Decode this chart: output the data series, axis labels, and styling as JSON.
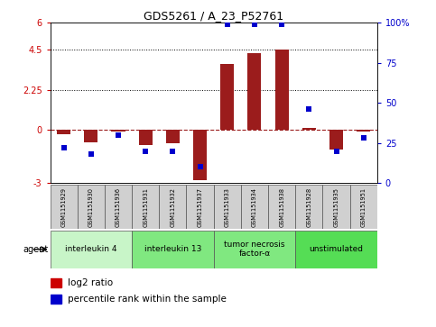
{
  "title": "GDS5261 / A_23_P52761",
  "samples": [
    "GSM1151929",
    "GSM1151930",
    "GSM1151936",
    "GSM1151931",
    "GSM1151932",
    "GSM1151937",
    "GSM1151933",
    "GSM1151934",
    "GSM1151938",
    "GSM1151928",
    "GSM1151935",
    "GSM1151951"
  ],
  "log2_ratio": [
    -0.25,
    -0.7,
    -0.08,
    -0.85,
    -0.75,
    -2.85,
    3.7,
    4.3,
    4.5,
    0.1,
    -1.1,
    -0.1
  ],
  "percentile_rank": [
    22,
    18,
    30,
    20,
    20,
    10,
    99,
    99,
    99,
    46,
    20,
    28
  ],
  "ylim_left": [
    -3,
    6
  ],
  "ylim_right": [
    0,
    100
  ],
  "yticks_left": [
    -3,
    0,
    2.25,
    4.5,
    6
  ],
  "ytick_labels_left": [
    "-3",
    "0",
    "2.25",
    "4.5",
    "6"
  ],
  "yticks_right": [
    0,
    25,
    50,
    75,
    100
  ],
  "ytick_labels_right": [
    "0",
    "25",
    "50",
    "75",
    "100%"
  ],
  "agents": [
    {
      "label": "interleukin 4",
      "start": 0,
      "end": 3,
      "color": "#c8f5c8"
    },
    {
      "label": "interleukin 13",
      "start": 3,
      "end": 6,
      "color": "#80e880"
    },
    {
      "label": "tumor necrosis\nfactor-α",
      "start": 6,
      "end": 9,
      "color": "#80e880"
    },
    {
      "label": "unstimulated",
      "start": 9,
      "end": 12,
      "color": "#55dd55"
    }
  ],
  "bar_color": "#9b1c1c",
  "dot_color": "#0000cc",
  "zero_line_color": "#9b1c1c",
  "legend_log2_color": "#cc0000",
  "legend_pct_color": "#0000cc"
}
